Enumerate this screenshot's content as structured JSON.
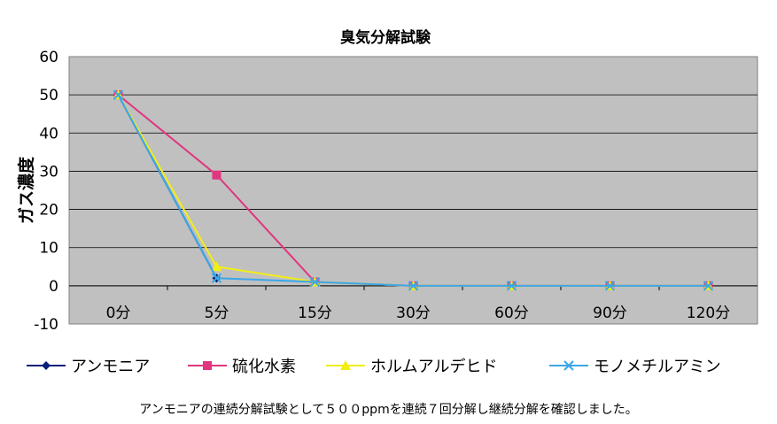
{
  "chart_data": {
    "type": "line",
    "title": "臭気分解試験",
    "ylabel": "ガス濃度",
    "xlabel": "",
    "categories": [
      "0分",
      "5分",
      "15分",
      "30分",
      "60分",
      "90分",
      "120分"
    ],
    "ylim": [
      -10,
      60
    ],
    "yticks": [
      "-10",
      "0",
      "10",
      "20",
      "30",
      "40",
      "50",
      "60"
    ],
    "grid": true,
    "legend": "bottom",
    "series": [
      {
        "name": "アンモニア",
        "color": "#0a1f7a",
        "marker": "diamond",
        "values": [
          50,
          2,
          null,
          null,
          null,
          null,
          null
        ]
      },
      {
        "name": "硫化水素",
        "color": "#e0357f",
        "marker": "square",
        "values": [
          50,
          29,
          1,
          0,
          0,
          0,
          0
        ]
      },
      {
        "name": "ホルムアルデヒド",
        "color": "#f2ee14",
        "marker": "triangle",
        "values": [
          50,
          5,
          1,
          0,
          0,
          0,
          0
        ]
      },
      {
        "name": "モノメチルアミン",
        "color": "#3ba7e8",
        "marker": "x",
        "values": [
          50,
          2,
          1,
          0,
          0,
          0,
          0
        ]
      }
    ]
  },
  "caption": "アンモニアの連続分解試験として５００ppmを連続７回分解し継続分解を確認しました。"
}
